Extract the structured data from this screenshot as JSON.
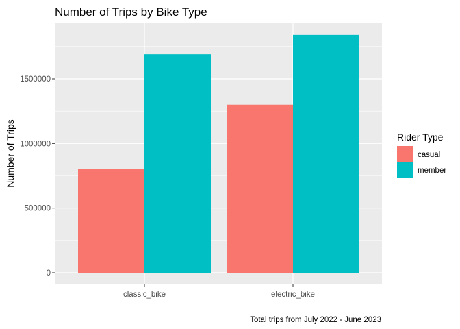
{
  "chart_data": {
    "type": "bar",
    "title": "Number of Trips by Bike Type",
    "xlabel": "",
    "ylabel": "Number of Trips",
    "caption": "Total trips from July 2022 - June 2023",
    "categories": [
      "classic_bike",
      "electric_bike"
    ],
    "series": [
      {
        "name": "casual",
        "values": [
          805000,
          1300000
        ],
        "color": "#F8766D"
      },
      {
        "name": "member",
        "values": [
          1690000,
          1840000
        ],
        "color": "#00BFC4"
      }
    ],
    "ylim": [
      0,
      1950000
    ],
    "yticks": [
      0,
      500000,
      1000000,
      1500000
    ],
    "ytick_labels": [
      "0",
      "500000",
      "1000000",
      "1500000"
    ],
    "legend": {
      "title": "Rider Type",
      "placement": "right"
    },
    "grid": true,
    "panel_background": "#EBEBEB"
  }
}
